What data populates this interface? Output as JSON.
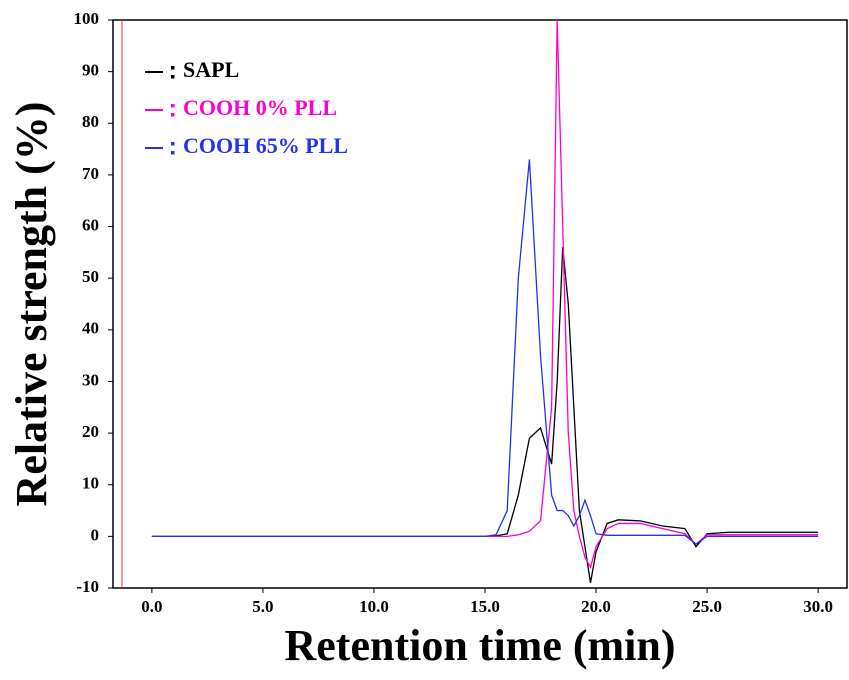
{
  "chart_data": {
    "type": "line",
    "x_label": "Retention time (min)",
    "y_label": "Relative strength (%)",
    "x": [
      0,
      5,
      10,
      15,
      15.5,
      16,
      16.5,
      17,
      17.5,
      18,
      18.25,
      18.5,
      18.75,
      19,
      19.25,
      19.5,
      19.75,
      20,
      20.5,
      21,
      22,
      23,
      24,
      24.5,
      25,
      26,
      30
    ],
    "series": [
      {
        "name": "SAPL",
        "color": "#000000",
        "values": [
          0,
          0,
          0,
          0,
          0.1,
          0.5,
          8,
          19,
          21,
          14,
          30,
          56,
          45,
          25,
          5,
          -2,
          -9,
          -3,
          2.5,
          3.2,
          3,
          2,
          1.5,
          -2,
          0.5,
          0.8,
          0.8
        ]
      },
      {
        "name": "COOH 0% PLL",
        "color": "#ff00cc",
        "values": [
          0,
          0,
          0,
          0,
          0,
          0,
          0.3,
          1,
          3,
          25,
          100,
          60,
          20,
          5,
          0,
          -4,
          -6,
          -2,
          1.5,
          2.5,
          2.5,
          1.5,
          0.5,
          -1.5,
          0.3,
          0.3,
          0.3
        ]
      },
      {
        "name": "COOH 65% PLL",
        "color": "#2233ee",
        "values": [
          0,
          0,
          0,
          0,
          0.3,
          5,
          50,
          73,
          35,
          8,
          5,
          5,
          4,
          2,
          4,
          7,
          4,
          0.5,
          0.2,
          0.2,
          0.2,
          0.2,
          0.2,
          -1.5,
          0,
          0,
          0
        ]
      }
    ],
    "xlim": [
      -1.75,
      31.3
    ],
    "ylim": [
      -10,
      100
    ],
    "xticks": [
      {
        "value": 0,
        "label": "0.0"
      },
      {
        "value": 5,
        "label": "5.0"
      },
      {
        "value": 10,
        "label": "10.0"
      },
      {
        "value": 15,
        "label": "15.0"
      },
      {
        "value": 20,
        "label": "20.0"
      },
      {
        "value": 25,
        "label": "25.0"
      },
      {
        "value": 30,
        "label": "30.0"
      }
    ],
    "yticks": [
      -10,
      0,
      10,
      20,
      30,
      40,
      50,
      60,
      70,
      80,
      90,
      100
    ],
    "grid": false,
    "legend": "top-left"
  }
}
